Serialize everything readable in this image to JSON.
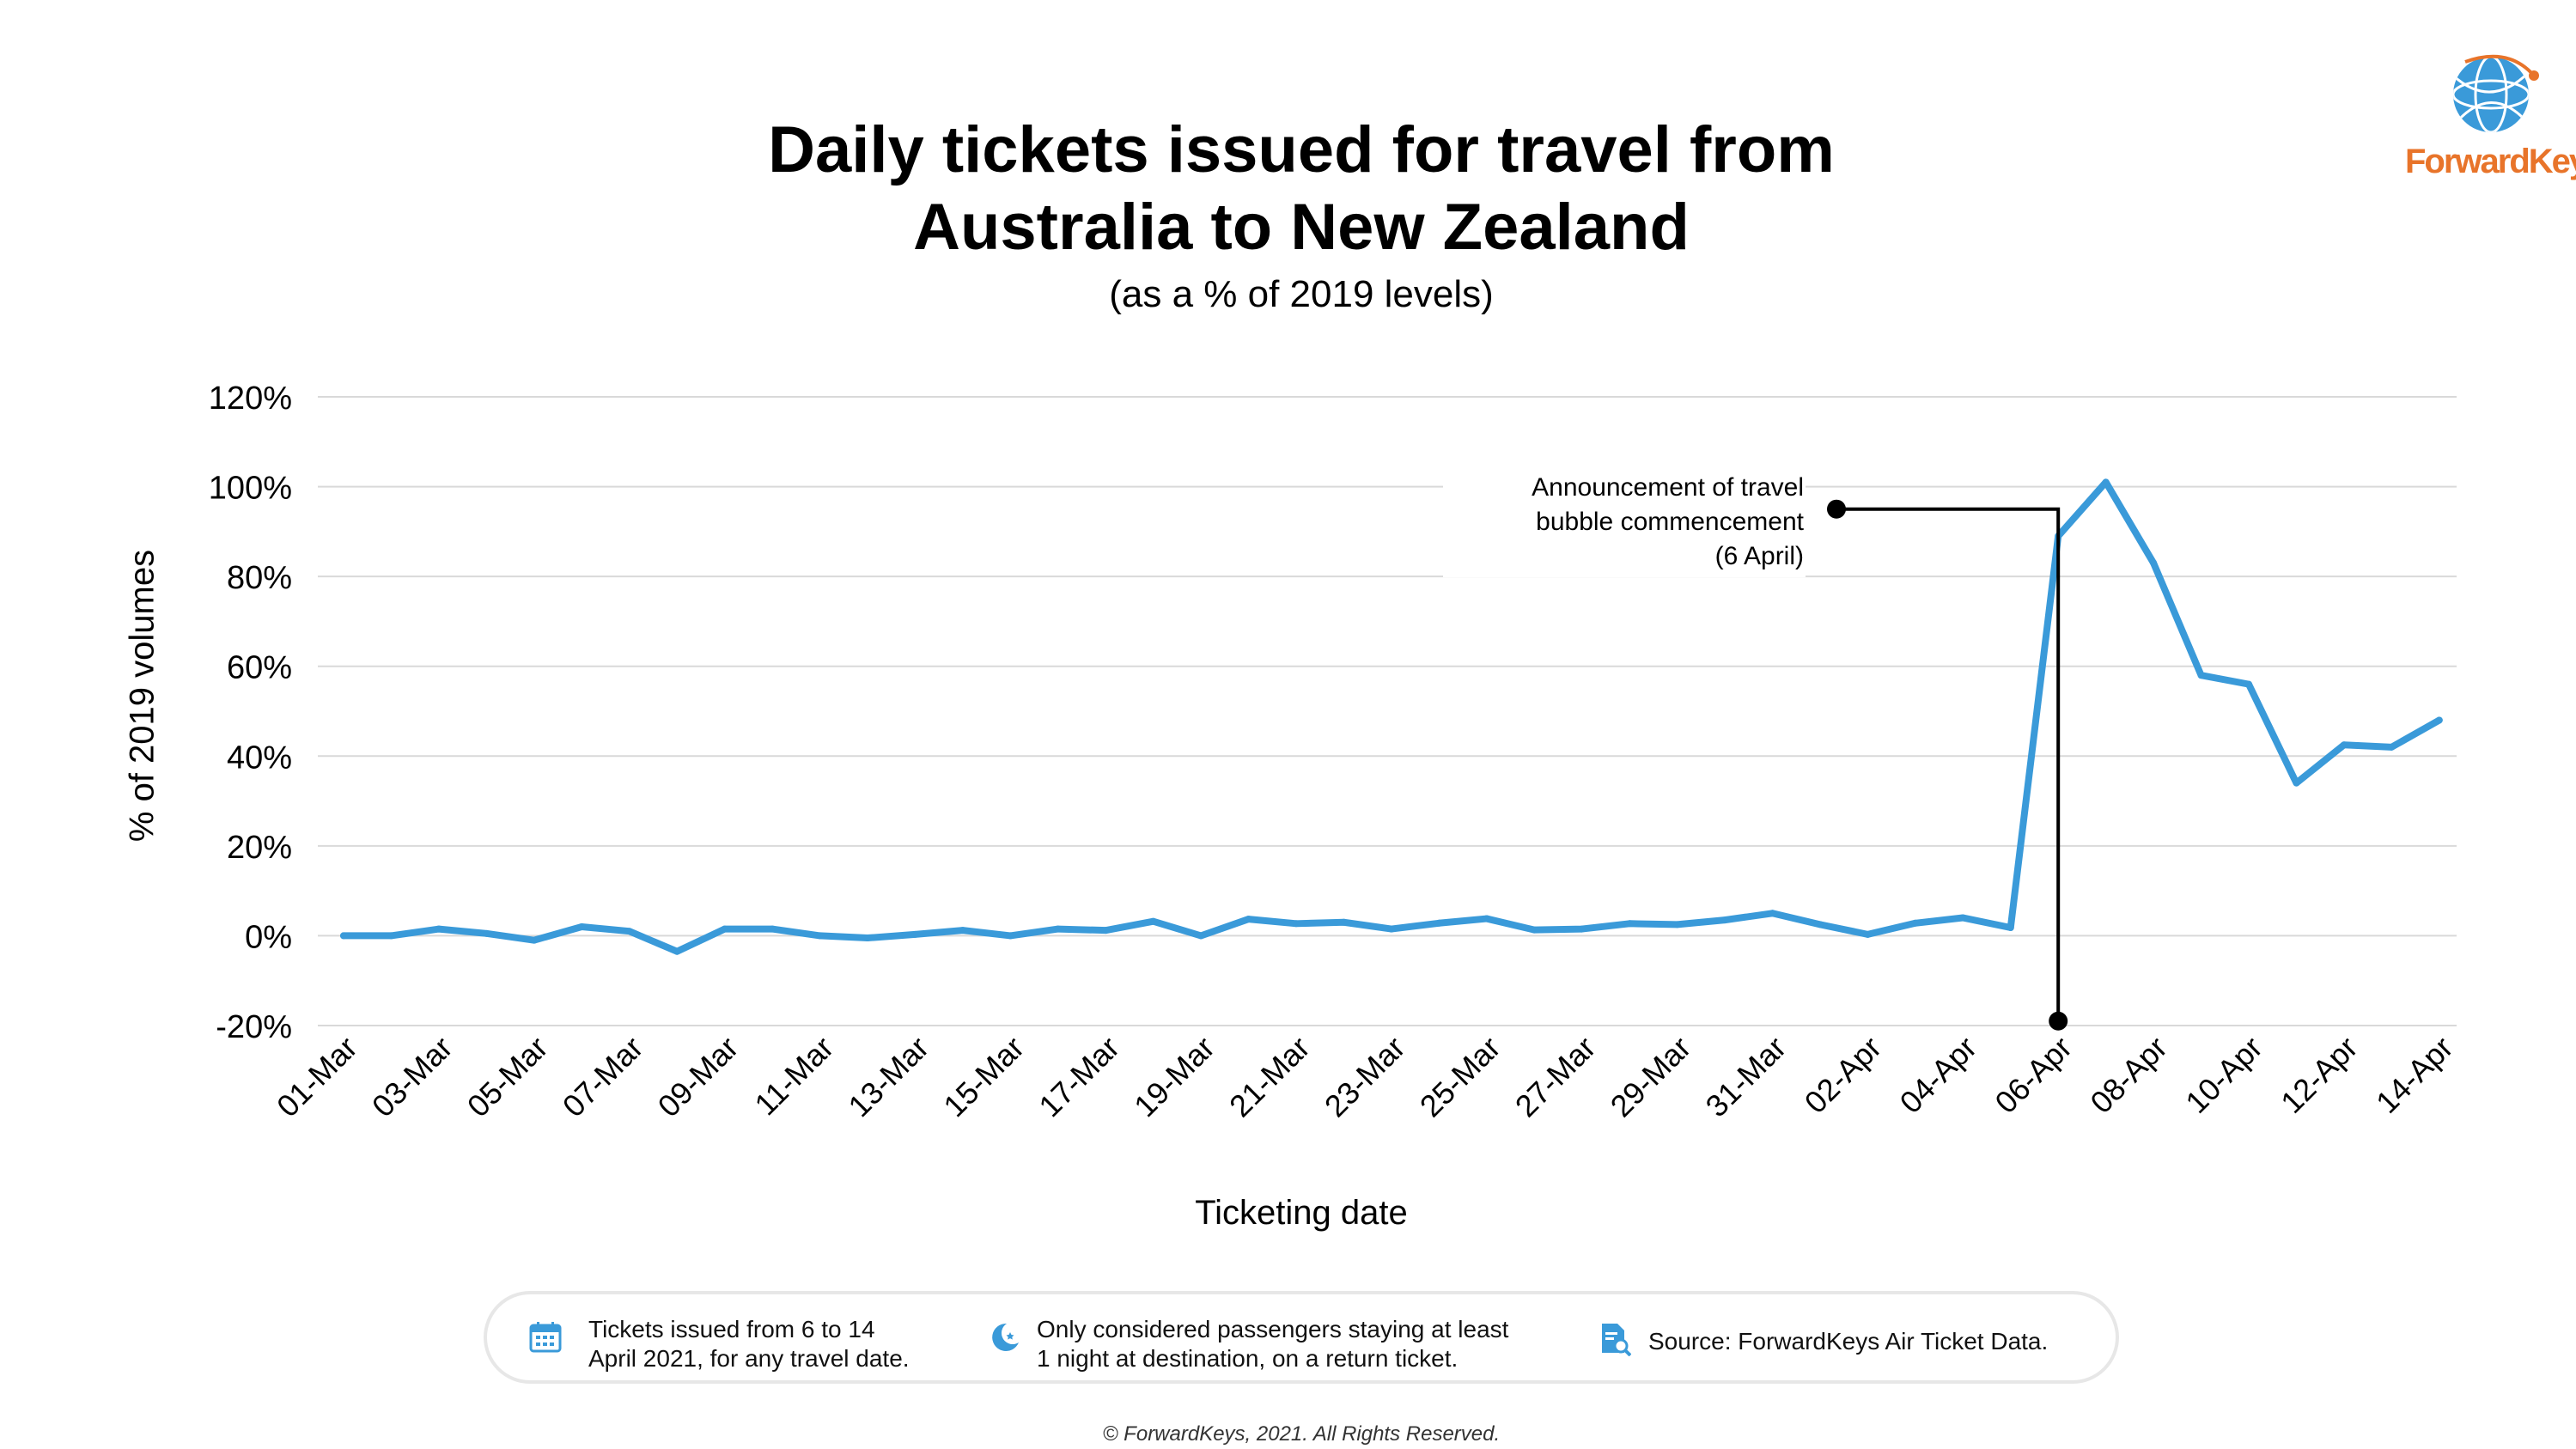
{
  "chart_data": {
    "type": "line",
    "title": "Daily tickets issued for travel from Australia to New Zealand",
    "title_lines": [
      "Daily tickets issued for travel from",
      "Australia to New Zealand"
    ],
    "subtitle": "(as a % of 2019 levels)",
    "xlabel": "Ticketing date",
    "ylabel": "% of 2019 volumes",
    "ylim": [
      -20,
      120
    ],
    "yticks": [
      -20,
      0,
      20,
      40,
      60,
      80,
      100,
      120
    ],
    "ytick_labels": [
      "-20%",
      "0%",
      "20%",
      "40%",
      "60%",
      "80%",
      "100%",
      "120%"
    ],
    "grid": "horizontal",
    "x_tick_labels": [
      "01-Mar",
      "03-Mar",
      "05-Mar",
      "07-Mar",
      "09-Mar",
      "11-Mar",
      "13-Mar",
      "15-Mar",
      "17-Mar",
      "19-Mar",
      "21-Mar",
      "23-Mar",
      "25-Mar",
      "27-Mar",
      "29-Mar",
      "31-Mar",
      "02-Apr",
      "04-Apr",
      "06-Apr",
      "08-Apr",
      "10-Apr",
      "12-Apr",
      "14-Apr"
    ],
    "x": [
      "01-Mar",
      "02-Mar",
      "03-Mar",
      "04-Mar",
      "05-Mar",
      "06-Mar",
      "07-Mar",
      "08-Mar",
      "09-Mar",
      "10-Mar",
      "11-Mar",
      "12-Mar",
      "13-Mar",
      "14-Mar",
      "15-Mar",
      "16-Mar",
      "17-Mar",
      "18-Mar",
      "19-Mar",
      "20-Mar",
      "21-Mar",
      "22-Mar",
      "23-Mar",
      "24-Mar",
      "25-Mar",
      "26-Mar",
      "27-Mar",
      "28-Mar",
      "29-Mar",
      "30-Mar",
      "31-Mar",
      "01-Apr",
      "02-Apr",
      "03-Apr",
      "04-Apr",
      "05-Apr",
      "06-Apr",
      "07-Apr",
      "08-Apr",
      "09-Apr",
      "10-Apr",
      "11-Apr",
      "12-Apr",
      "13-Apr",
      "14-Apr"
    ],
    "series": [
      {
        "color": "#3a9ad9",
        "values": [
          0,
          0,
          1.5,
          0.5,
          -1,
          2,
          1,
          -3.5,
          1.5,
          1.5,
          0,
          -0.5,
          0.3,
          1.2,
          0,
          1.5,
          1.2,
          3.2,
          0,
          3.7,
          2.7,
          3,
          1.5,
          2.8,
          3.8,
          1.3,
          1.5,
          2.7,
          2.5,
          3.5,
          5,
          2.5,
          0.3,
          2.8,
          4,
          1.8,
          89,
          101,
          83,
          58,
          56,
          34,
          42.5,
          42,
          48
        ]
      }
    ],
    "annotation": {
      "lines": [
        "Announcement of travel",
        "bubble commencement",
        "(6 April)"
      ],
      "x": "06-Apr",
      "marker_y_high": 95,
      "marker_y_low": -19,
      "color": "#000000"
    }
  },
  "logo": {
    "text": "ForwardKeys",
    "text_color": "#e8742a",
    "globe_color": "#3a9ad9"
  },
  "notes": [
    {
      "icon": "calendar-icon",
      "lines": [
        "Tickets issued from 6 to 14",
        "April 2021, for any travel date."
      ]
    },
    {
      "icon": "moon-star-icon",
      "lines": [
        "Only considered passengers staying at least",
        "1 night at destination, on a return ticket."
      ]
    },
    {
      "icon": "document-search-icon",
      "lines": [
        "Source: ForwardKeys Air Ticket Data."
      ]
    }
  ],
  "copyright": "© ForwardKeys, 2021. All Rights Reserved."
}
